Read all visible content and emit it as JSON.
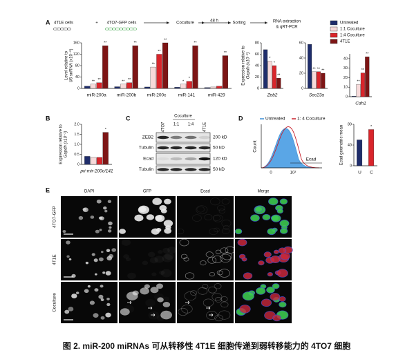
{
  "caption": "图 2. miR-200 miRNAs 可从转移性 4T1E 细胞传递到弱转移能力的 4TO7 细胞",
  "panel_labels": [
    "A",
    "B",
    "C",
    "D",
    "E"
  ],
  "workflow": [
    "4T1E cells",
    "+",
    "4TO7-GFP cells",
    "Coculture",
    "48 h",
    "Sorting",
    "RNA extraction",
    "& qRT-PCR"
  ],
  "legend": [
    {
      "name": "Untreated",
      "color": "#1f2d6b"
    },
    {
      "name": "1:1 Coculture",
      "color": "#f7dada"
    },
    {
      "name": "1:4 Coculture",
      "color": "#d9252b"
    },
    {
      "name": "4T1E",
      "color": "#7d1515"
    }
  ],
  "chart_data": [
    {
      "type": "bar",
      "ylabel": [
        "Level relative to",
        "U6 snRNA (x10⁻⁶)"
      ],
      "categories": [
        "miR-200a",
        "miR-200b",
        "miR-200c",
        "miR-141",
        "miR-429"
      ],
      "ylim": [
        0,
        160
      ],
      "yticks": [
        0,
        40,
        80,
        120,
        160
      ],
      "series": [
        {
          "color": "#1f2d6b",
          "values": [
            8,
            6,
            5,
            4,
            3
          ]
        },
        {
          "color": "#f7dada",
          "values": [
            15,
            15,
            75,
            15,
            5
          ],
          "significance": [
            "**",
            "**",
            "**",
            "*",
            null
          ]
        },
        {
          "color": "#d9252b",
          "values": [
            20,
            20,
            120,
            25,
            8
          ],
          "significance": [
            "**",
            "**",
            "**",
            "*",
            null
          ]
        },
        {
          "color": "#7d1515",
          "values": [
            150,
            150,
            160,
            150,
            115
          ],
          "significance": [
            "**",
            "**",
            "**",
            "**",
            "**"
          ]
        }
      ]
    },
    {
      "type": "bar",
      "ylabel": [
        "Expression relative to",
        "Gapdh (x10⁻³)"
      ],
      "categories": [
        "Zeb2"
      ],
      "ylim": [
        0,
        80
      ],
      "yticks": [
        0,
        20,
        40,
        60,
        80
      ],
      "series": [
        {
          "color": "#1f2d6b",
          "values": [
            68
          ]
        },
        {
          "color": "#f7dada",
          "values": [
            48
          ],
          "significance": [
            "*"
          ]
        },
        {
          "color": "#d9252b",
          "values": [
            40
          ],
          "significance": [
            "*"
          ]
        },
        {
          "color": "#7d1515",
          "values": [
            18
          ],
          "significance": [
            "**"
          ]
        }
      ]
    },
    {
      "type": "bar",
      "categories": [
        "Sec23a"
      ],
      "ylim": [
        0,
        60
      ],
      "yticks": [
        0,
        20,
        40,
        60
      ],
      "series": [
        {
          "color": "#1f2d6b",
          "values": [
            58
          ]
        },
        {
          "color": "#f7dada",
          "values": [
            22
          ],
          "significance": [
            "**"
          ]
        },
        {
          "color": "#d9252b",
          "values": [
            22
          ],
          "significance": [
            "**"
          ]
        },
        {
          "color": "#7d1515",
          "values": [
            20
          ],
          "significance": [
            "**"
          ]
        }
      ]
    },
    {
      "type": "bar",
      "categories": [
        "Cdh1"
      ],
      "ylim": [
        0,
        45
      ],
      "yticks": [
        0,
        10,
        20,
        30,
        40
      ],
      "series": [
        {
          "color": "#1f2d6b",
          "values": [
            0.5
          ]
        },
        {
          "color": "#f7dada",
          "values": [
            13
          ],
          "significance": [
            "**"
          ]
        },
        {
          "color": "#d9252b",
          "values": [
            25
          ],
          "significance": [
            "**"
          ]
        },
        {
          "color": "#7d1515",
          "values": [
            42
          ],
          "significance": [
            "**"
          ]
        }
      ]
    },
    {
      "type": "bar",
      "ylabel": [
        "Expression relative to",
        "Gapdh (x10⁻³)"
      ],
      "categories": [
        "pri-mir-200c/141"
      ],
      "ylim": [
        0,
        2
      ],
      "yticks": [
        0,
        0.5,
        {
          "value": 1,
          "label": "1.0"
        },
        1.5,
        {
          "value": 2,
          "label": "2.0"
        }
      ],
      "series": [
        {
          "color": "#1f2d6b",
          "values": [
            0.4
          ]
        },
        {
          "color": "#f7dada",
          "values": [
            0.35
          ]
        },
        {
          "color": "#d9252b",
          "values": [
            0.35
          ]
        },
        {
          "color": "#7d1515",
          "values": [
            1.6
          ],
          "significance": [
            "*"
          ]
        }
      ]
    },
    {
      "type": "bar",
      "ylabel": [
        "Ecad geometric mean"
      ],
      "categories": [
        "U",
        "C"
      ],
      "values": [
        50,
        70
      ],
      "colors": [
        "#1f2d6b",
        "#d9252b"
      ],
      "significance": [
        null,
        "*"
      ],
      "ylim": [
        0,
        80
      ],
      "yticks": [
        0,
        40,
        80
      ]
    }
  ],
  "blot": {
    "lanes": [
      "4TO7",
      "Coculture",
      "1:1",
      "1:4",
      "4T1E"
    ],
    "rows": [
      {
        "protein": "ZEB2",
        "size": "200 kD"
      },
      {
        "protein": "Tubulin",
        "size": "50 kD"
      },
      {
        "protein": "Ecad",
        "size": "120 kD"
      },
      {
        "protein": "Tubulin",
        "size": "50 kD"
      }
    ]
  },
  "flow": {
    "legend": [
      {
        "name": "Untreated",
        "color": "#3a8fd6"
      },
      {
        "name": "1: 4 Coculture",
        "color": "#c8202a"
      }
    ],
    "ylabel": "Count",
    "xlabel": "Ecad",
    "xticks": [
      "0",
      "10²"
    ]
  },
  "micrographs": {
    "columns": [
      {
        "name": "DAPI",
        "color": "#3b4fc4"
      },
      {
        "name": "GFP",
        "color": "#2e9e3a"
      },
      {
        "name": "Ecad",
        "color": "#d22"
      },
      {
        "name": "Merge",
        "color": "#111"
      }
    ],
    "rows": [
      "4TO7-GFP",
      "4T1E",
      "Coculture"
    ]
  }
}
